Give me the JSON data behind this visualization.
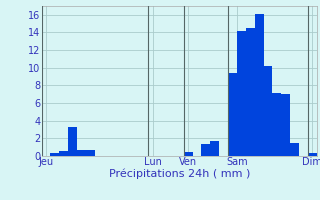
{
  "values": [
    0,
    0.3,
    0.6,
    3.3,
    0.7,
    0.7,
    0,
    0,
    0,
    0,
    0,
    0,
    0,
    0,
    0,
    0,
    0.5,
    0,
    1.4,
    1.7,
    0,
    9.4,
    14.2,
    14.5,
    16.1,
    10.2,
    7.1,
    7.0,
    1.5,
    0,
    0.3
  ],
  "bar_color": "#0044dd",
  "bg_color": "#d8f5f5",
  "grid_color": "#aacccc",
  "xlabel": "Précipitations 24h ( mm )",
  "xlabel_color": "#3333bb",
  "tick_color": "#3333bb",
  "ylim": [
    0,
    17
  ],
  "yticks": [
    0,
    2,
    4,
    6,
    8,
    10,
    12,
    14,
    16
  ],
  "day_labels": [
    "Jeu",
    "Lun",
    "Ven",
    "Sam",
    "Dim"
  ],
  "day_positions": [
    0.5,
    12.5,
    16.5,
    22,
    30.5
  ],
  "vline_x": [
    0,
    12,
    16,
    21,
    30
  ],
  "xlabel_fontsize": 8,
  "tick_fontsize": 7
}
